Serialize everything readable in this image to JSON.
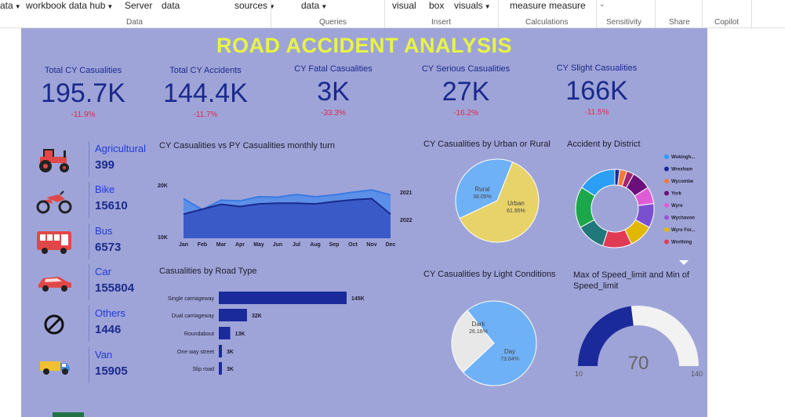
{
  "ribbon": {
    "top_items": [
      {
        "label": "ata",
        "chev": true
      },
      {
        "label": "workbook data hub",
        "chev": true
      },
      {
        "label": "Server",
        "chev": false
      },
      {
        "label": "data",
        "chev": false
      },
      {
        "label": "sources",
        "chev": true
      },
      {
        "label": "data",
        "chev": true
      },
      {
        "label": "visual",
        "chev": false
      },
      {
        "label": "box",
        "chev": false
      },
      {
        "label": "visuals",
        "chev": true
      },
      {
        "label": "measure measure",
        "chev": false
      }
    ],
    "groups": [
      "Data",
      "Queries",
      "Insert",
      "Calculations",
      "Sensitivity",
      "Share",
      "Copilot"
    ]
  },
  "report": {
    "title": "ROAD ACCIDENT ANALYSIS",
    "kpis": [
      {
        "label": "Total CY Casualities",
        "value": "195.7K",
        "change": "-11.9%"
      },
      {
        "label": "Total CY Accidents",
        "value": "144.4K",
        "change": "-11.7%"
      },
      {
        "label": "CY Fatal Casualities",
        "value": "3K",
        "change": "-33.3%"
      },
      {
        "label": "CY Serious Casualities",
        "value": "27K",
        "change": "-16.2%"
      },
      {
        "label": "CY Slight Casualities",
        "value": "166K",
        "change": "-11.5%"
      }
    ],
    "vehicles": [
      {
        "label": "Agricultural",
        "value": "399",
        "icon": "tractor-icon"
      },
      {
        "label": "Bike",
        "value": "15610",
        "icon": "motorbike-icon"
      },
      {
        "label": "Bus",
        "value": "6573",
        "icon": "bus-icon"
      },
      {
        "label": "Car",
        "value": "155804",
        "icon": "car-icon"
      },
      {
        "label": "Others",
        "value": "1446",
        "icon": "prohibited-icon"
      },
      {
        "label": "Van",
        "value": "15905",
        "icon": "van-icon"
      }
    ],
    "visual_titles": {
      "monthly": "CY Casualities vs PY Casualities monthly turn",
      "urban": "CY Casualities by Urban or Rural",
      "district": "Accident by District",
      "road": "Casualities by Road Type",
      "light": "CY Casualities by Light Conditions",
      "speed": "Max of Speed_limit and Min of Speed_limit"
    },
    "colors": {
      "canvas": "#9fa4d8",
      "title": "#e8f542",
      "kpi": "#1a2a8c",
      "negative": "#e0294a"
    }
  },
  "chart_data": [
    {
      "type": "area",
      "title": "CY Casualities vs PY Casualities monthly turn",
      "categories": [
        "Jan",
        "Feb",
        "Mar",
        "Apr",
        "May",
        "Jun",
        "Jul",
        "Aug",
        "Sep",
        "Oct",
        "Nov",
        "Dec"
      ],
      "y_ticks": [
        "20K",
        "10K"
      ],
      "ylim": [
        9,
        21
      ],
      "series": [
        {
          "name": "2021",
          "values": [
            17.4,
            14.5,
            17.0,
            16.8,
            17.9,
            17.8,
            18.5,
            17.9,
            18.4,
            19.1,
            19.7,
            18.4
          ],
          "color": "#5b8fe8"
        },
        {
          "name": "2022",
          "values": [
            13.3,
            14.6,
            15.9,
            15.3,
            16.0,
            16.2,
            16.2,
            16.0,
            16.6,
            17.1,
            17.4,
            13.3
          ],
          "color": "#3a5bc7"
        }
      ]
    },
    {
      "type": "pie",
      "title": "CY Casualities by Urban or Rural",
      "labels": [
        "Rural",
        "Urban"
      ],
      "value_labels": [
        "38.05%",
        "61.95%"
      ],
      "values": [
        38.05,
        61.95
      ],
      "colors": [
        "#6fb1f6",
        "#e8d36a"
      ]
    },
    {
      "type": "pie",
      "title": "Accident by District",
      "legend": [
        "Wokingh...",
        "Wrexham",
        "Wycombe",
        "York",
        "Wyre",
        "Wychavon",
        "Wyre For...",
        "Worthing"
      ],
      "legend_colors": [
        "#2b9ff3",
        "#1a2a9a",
        "#f07b3d",
        "#6b0f7a",
        "#e05bd6",
        "#9a55d8",
        "#e8b800",
        "#e23c5a"
      ],
      "ring_values": [
        2,
        3,
        3,
        8,
        7,
        10,
        10,
        12,
        12,
        17,
        16
      ],
      "ring_colors": [
        "#1a2a9a",
        "#f07b3d",
        "#a0286e",
        "#6b0f7a",
        "#e05bd6",
        "#7a4fd0",
        "#e0b800",
        "#e03a55",
        "#20787a",
        "#1ca84a",
        "#2b9ff3"
      ]
    },
    {
      "type": "bar",
      "title": "Casualities by Road Type",
      "categories": [
        "Single carriageway",
        "Dual carriageway",
        "Roundabout",
        "One way street",
        "Slip road"
      ],
      "values": [
        145,
        32,
        13,
        3,
        3
      ],
      "value_labels": [
        "145K",
        "32K",
        "13K",
        "3K",
        "3K"
      ],
      "color": "#1a2a9a"
    },
    {
      "type": "pie",
      "title": "CY Casualities by Light Conditions",
      "labels": [
        "Dark",
        "Day"
      ],
      "value_labels": [
        "26.16%",
        "73.84%"
      ],
      "values": [
        26.16,
        73.84
      ],
      "colors": [
        "#e8e8e8",
        "#6fb1f6"
      ]
    },
    {
      "type": "gauge",
      "title": "Max of Speed_limit and Min of Speed_limit",
      "min": 10,
      "max": 140,
      "value": 70,
      "min_label": "10",
      "max_label": "140",
      "value_label": "70"
    }
  ]
}
